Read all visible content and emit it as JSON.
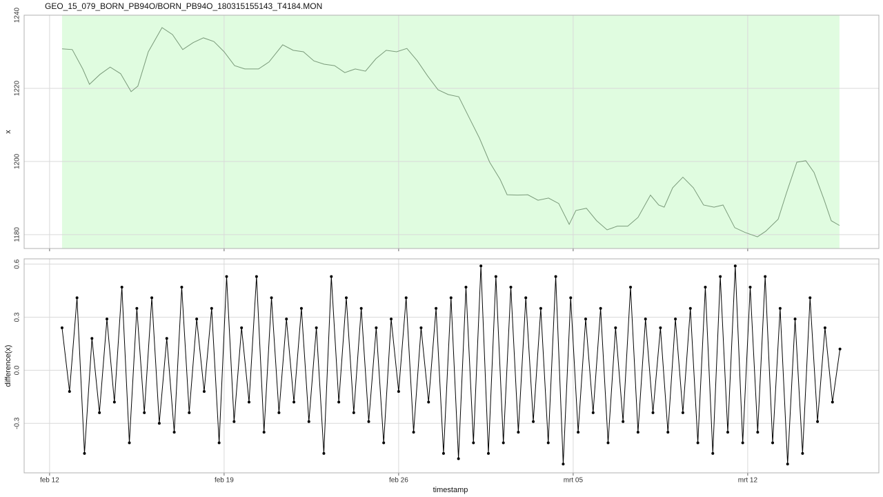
{
  "chart_data": [
    {
      "type": "line",
      "title": "GEO_15_079_BORN_PB94O/BORN_PB94O_180315155143_T4184.MON",
      "y_label": "x",
      "x": [
        12.5,
        12.91,
        13.33,
        13.6,
        14.02,
        14.43,
        14.85,
        15.27,
        15.54,
        15.96,
        16.51,
        16.93,
        17.34,
        17.76,
        18.17,
        18.59,
        19.0,
        19.42,
        19.83,
        20.38,
        20.8,
        21.35,
        21.77,
        22.18,
        22.6,
        23.01,
        23.43,
        23.84,
        24.26,
        24.67,
        25.09,
        25.5,
        25.92,
        26.33,
        26.75,
        27.16,
        27.58,
        27.99,
        28.41,
        28.82,
        29.24,
        29.65,
        30.07,
        30.35,
        30.76,
        31.18,
        31.59,
        32.01,
        32.42,
        32.84,
        33.11,
        33.53,
        33.94,
        34.36,
        34.77,
        35.19,
        35.6,
        36.1,
        36.43,
        36.65,
        36.99,
        37.4,
        37.82,
        38.23,
        38.65,
        39.01,
        39.48,
        39.89,
        40.39,
        40.72,
        41.22,
        41.55,
        41.97,
        42.33,
        42.66,
        43.07,
        43.35,
        43.68
      ],
      "series": [
        {
          "color": "#7a9a7a",
          "values": [
            1230.8,
            1230.6,
            1225.3,
            1221.1,
            1223.8,
            1225.8,
            1224,
            1219.1,
            1220.6,
            1230,
            1236.6,
            1234.7,
            1230.6,
            1232.5,
            1233.8,
            1232.8,
            1230,
            1226.2,
            1225.3,
            1225.3,
            1227.2,
            1231.9,
            1230.4,
            1230,
            1227.5,
            1226.6,
            1226.2,
            1224.3,
            1225.3,
            1224.7,
            1228.1,
            1230.4,
            1230,
            1230.9,
            1227.5,
            1223.4,
            1219.6,
            1218.3,
            1217.7,
            1212.1,
            1206.4,
            1199.8,
            1195.1,
            1190.9,
            1190.8,
            1190.9,
            1189.4,
            1190,
            1188.5,
            1182.8,
            1186.6,
            1187.2,
            1183.8,
            1181.3,
            1182.3,
            1182.3,
            1184.7,
            1190.8,
            1188.1,
            1187.5,
            1192.8,
            1195.7,
            1192.8,
            1188.1,
            1187.5,
            1188.1,
            1181.9,
            1180.6,
            1179.4,
            1180.9,
            1184.2,
            1191.3,
            1199.8,
            1200.2,
            1197,
            1189.4,
            1183.8,
            1182.5
          ]
        }
      ],
      "xlim": [
        10.98,
        45.26
      ],
      "ylim": [
        1176.2,
        1240
      ],
      "yticks": [
        1180,
        1200,
        1220,
        1240
      ],
      "highlight": {
        "from": 12.5,
        "to": 43.68,
        "color": "#e0fce0"
      },
      "grid": true
    },
    {
      "type": "line",
      "x_label": "timestamp",
      "y_label": "difference(x)",
      "markers": true,
      "x": [
        12.5,
        12.8,
        13.1,
        13.4,
        13.7,
        14,
        14.3,
        14.6,
        14.9,
        15.2,
        15.5,
        15.8,
        16.1,
        16.4,
        16.7,
        17,
        17.3,
        17.6,
        17.9,
        18.2,
        18.5,
        18.8,
        19.1,
        19.4,
        19.7,
        20,
        20.3,
        20.6,
        20.9,
        21.2,
        21.5,
        21.8,
        22.1,
        22.4,
        22.7,
        23,
        23.3,
        23.6,
        23.9,
        24.2,
        24.5,
        24.8,
        25.1,
        25.4,
        25.7,
        26,
        26.3,
        26.6,
        26.9,
        27.2,
        27.5,
        27.8,
        28.1,
        28.4,
        28.7,
        29,
        29.3,
        29.6,
        29.9,
        30.2,
        30.5,
        30.8,
        31.1,
        31.4,
        31.7,
        32,
        32.3,
        32.6,
        32.9,
        33.2,
        33.5,
        33.8,
        34.1,
        34.4,
        34.7,
        35,
        35.3,
        35.6,
        35.9,
        36.2,
        36.5,
        36.8,
        37.1,
        37.4,
        37.7,
        38,
        38.3,
        38.6,
        38.9,
        39.2,
        39.5,
        39.8,
        40.1,
        40.4,
        40.7,
        41,
        41.3,
        41.6,
        41.9,
        42.2,
        42.5,
        42.8,
        43.1,
        43.4,
        43.7
      ],
      "series": [
        {
          "color": "#000000",
          "values": [
            0.24,
            -0.12,
            0.41,
            -0.47,
            0.18,
            -0.24,
            0.29,
            -0.18,
            0.47,
            -0.41,
            0.35,
            -0.24,
            0.41,
            -0.3,
            0.18,
            -0.35,
            0.47,
            -0.24,
            0.29,
            -0.12,
            0.35,
            -0.41,
            0.53,
            -0.29,
            0.24,
            -0.18,
            0.53,
            -0.35,
            0.41,
            -0.24,
            0.29,
            -0.18,
            0.35,
            -0.29,
            0.24,
            -0.47,
            0.53,
            -0.18,
            0.41,
            -0.24,
            0.35,
            -0.29,
            0.24,
            -0.41,
            0.29,
            -0.12,
            0.41,
            -0.35,
            0.24,
            -0.18,
            0.35,
            -0.47,
            0.41,
            -0.5,
            0.47,
            -0.41,
            0.59,
            -0.47,
            0.53,
            -0.41,
            0.47,
            -0.35,
            0.41,
            -0.29,
            0.35,
            -0.41,
            0.53,
            -0.53,
            0.41,
            -0.35,
            0.29,
            -0.24,
            0.35,
            -0.41,
            0.24,
            -0.29,
            0.47,
            -0.35,
            0.29,
            -0.24,
            0.24,
            -0.35,
            0.29,
            -0.24,
            0.35,
            -0.41,
            0.47,
            -0.47,
            0.53,
            -0.35,
            0.59,
            -0.41,
            0.47,
            -0.35,
            0.53,
            -0.41,
            0.35,
            -0.53,
            0.29,
            -0.47,
            0.41,
            -0.29,
            0.24,
            -0.18,
            0.12
          ]
        }
      ],
      "xlim": [
        10.98,
        45.26
      ],
      "ylim": [
        -0.58,
        0.63
      ],
      "yticks": [
        -0.3,
        {
          "value": 0,
          "label": "0.0"
        },
        0.3,
        0.6
      ],
      "xticks": [
        {
          "value": 12,
          "label": "feb 12"
        },
        {
          "value": 19,
          "label": "feb 19"
        },
        {
          "value": 26,
          "label": "feb 26"
        },
        {
          "value": 33,
          "label": "mrt 05"
        },
        {
          "value": 40,
          "label": "mrt 12"
        }
      ],
      "grid": true
    }
  ]
}
